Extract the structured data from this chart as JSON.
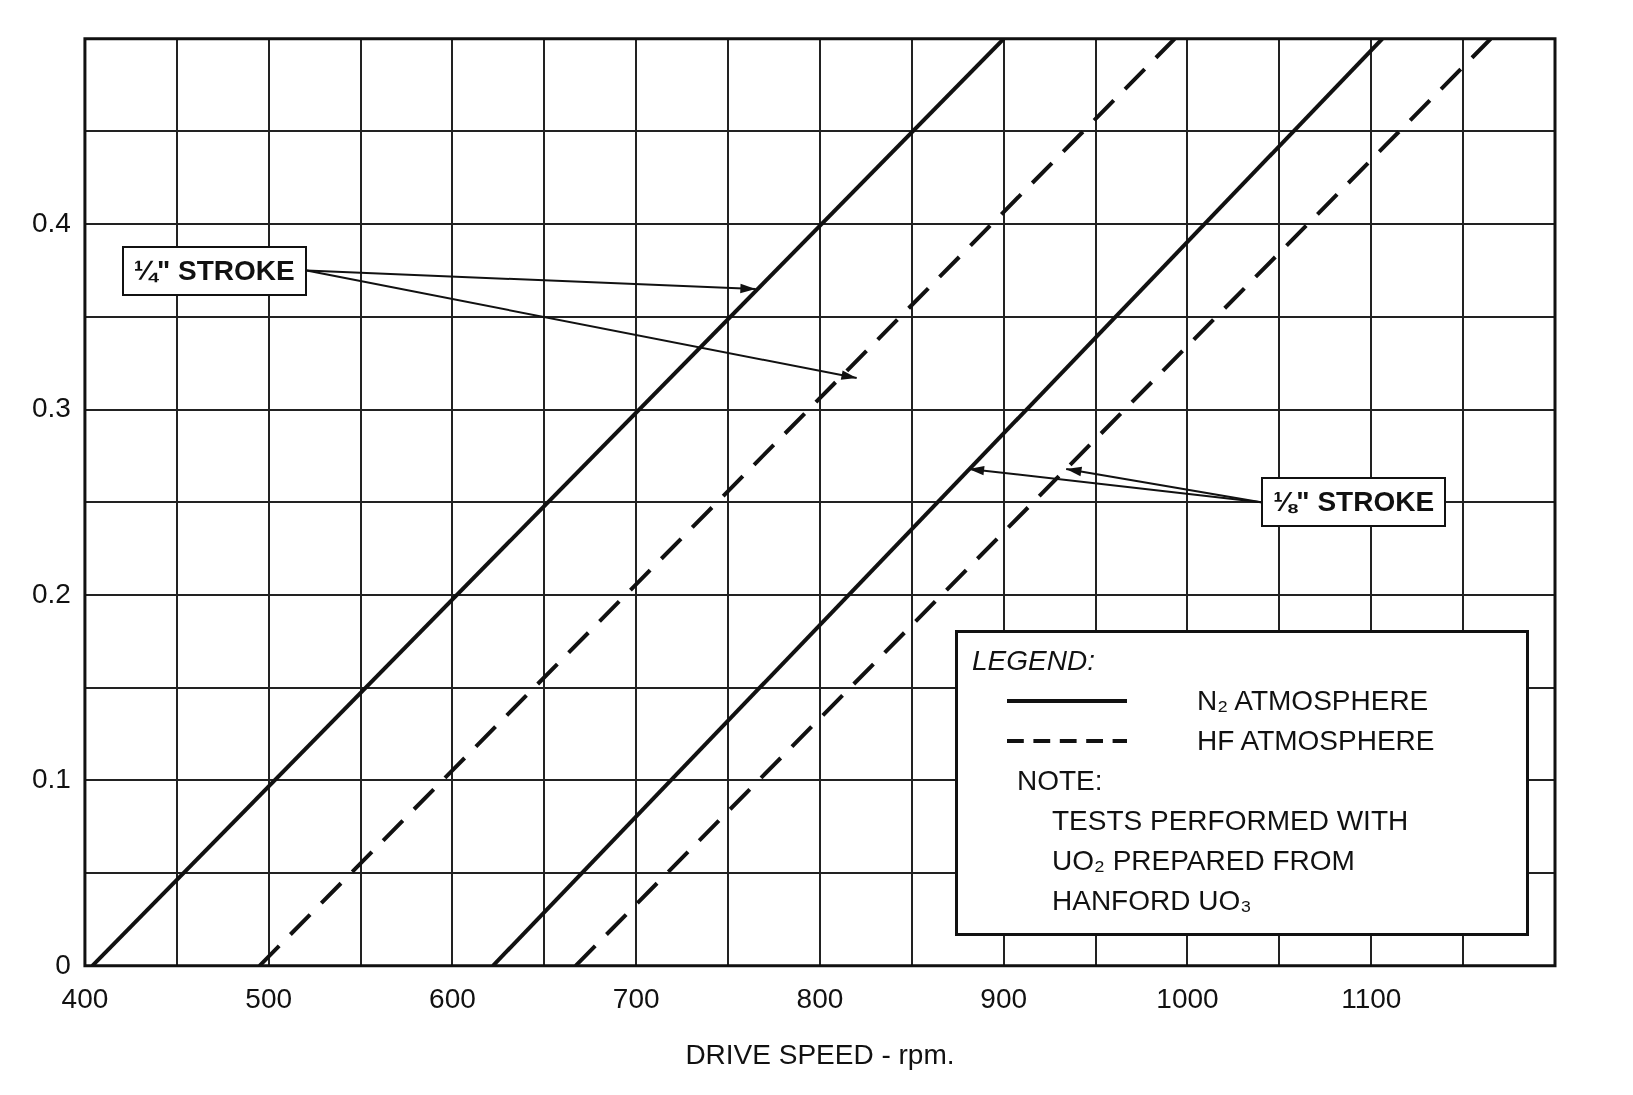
{
  "chart_data": {
    "type": "line",
    "xlabel": "DRIVE SPEED - rpm.",
    "legend_title": "LEGEND:",
    "series": [
      {
        "name": "N₂ ATMOSPHERE",
        "color": "#111111",
        "line_style": "solid",
        "x": [
          404,
          900
        ],
        "values": [
          0,
          0.5
        ]
      },
      {
        "name": "HF ATMOSPHERE",
        "color": "#111111",
        "line_style": "dashed",
        "x": [
          495,
          993
        ],
        "values": [
          0,
          0.5
        ]
      },
      {
        "color": "#111111",
        "line_style": "solid",
        "x": [
          622,
          1106
        ],
        "values": [
          0,
          0.5
        ]
      },
      {
        "color": "#111111",
        "line_style": "dashed",
        "x": [
          667,
          1165
        ],
        "values": [
          0,
          0.5
        ]
      }
    ],
    "xlim": [
      400,
      1200
    ],
    "xticks": [
      400,
      {
        "value": 450,
        "label": null
      },
      500,
      {
        "value": 550,
        "label": null
      },
      600,
      {
        "value": 650,
        "label": null
      },
      700,
      {
        "value": 750,
        "label": null
      },
      800,
      {
        "value": 850,
        "label": null
      },
      900,
      {
        "value": 950,
        "label": null
      },
      1000,
      {
        "value": 1050,
        "label": null
      },
      1100,
      {
        "value": 1150,
        "label": null
      }
    ],
    "ylim": [
      0,
      0.5
    ],
    "yticks": [
      0,
      {
        "value": 0.05,
        "label": null
      },
      0.1,
      {
        "value": 0.15,
        "label": null
      },
      0.2,
      {
        "value": 0.25,
        "label": null
      },
      0.3,
      {
        "value": 0.35,
        "label": null
      },
      0.4,
      {
        "value": 0.45,
        "label": null
      }
    ],
    "grid": true,
    "legend": "bottom right",
    "marker": "none",
    "annotations": [
      {
        "text": "¼\" STROKE",
        "x": 765,
        "y": 0.365
      },
      {
        "text": "⅛\" STROKE",
        "x": 881,
        "y": 0.268
      },
      "NOTE:\nTESTS PERFORMED WITH\nUO₂ PREPARED FROM\nHANFORD UO₃"
    ]
  }
}
